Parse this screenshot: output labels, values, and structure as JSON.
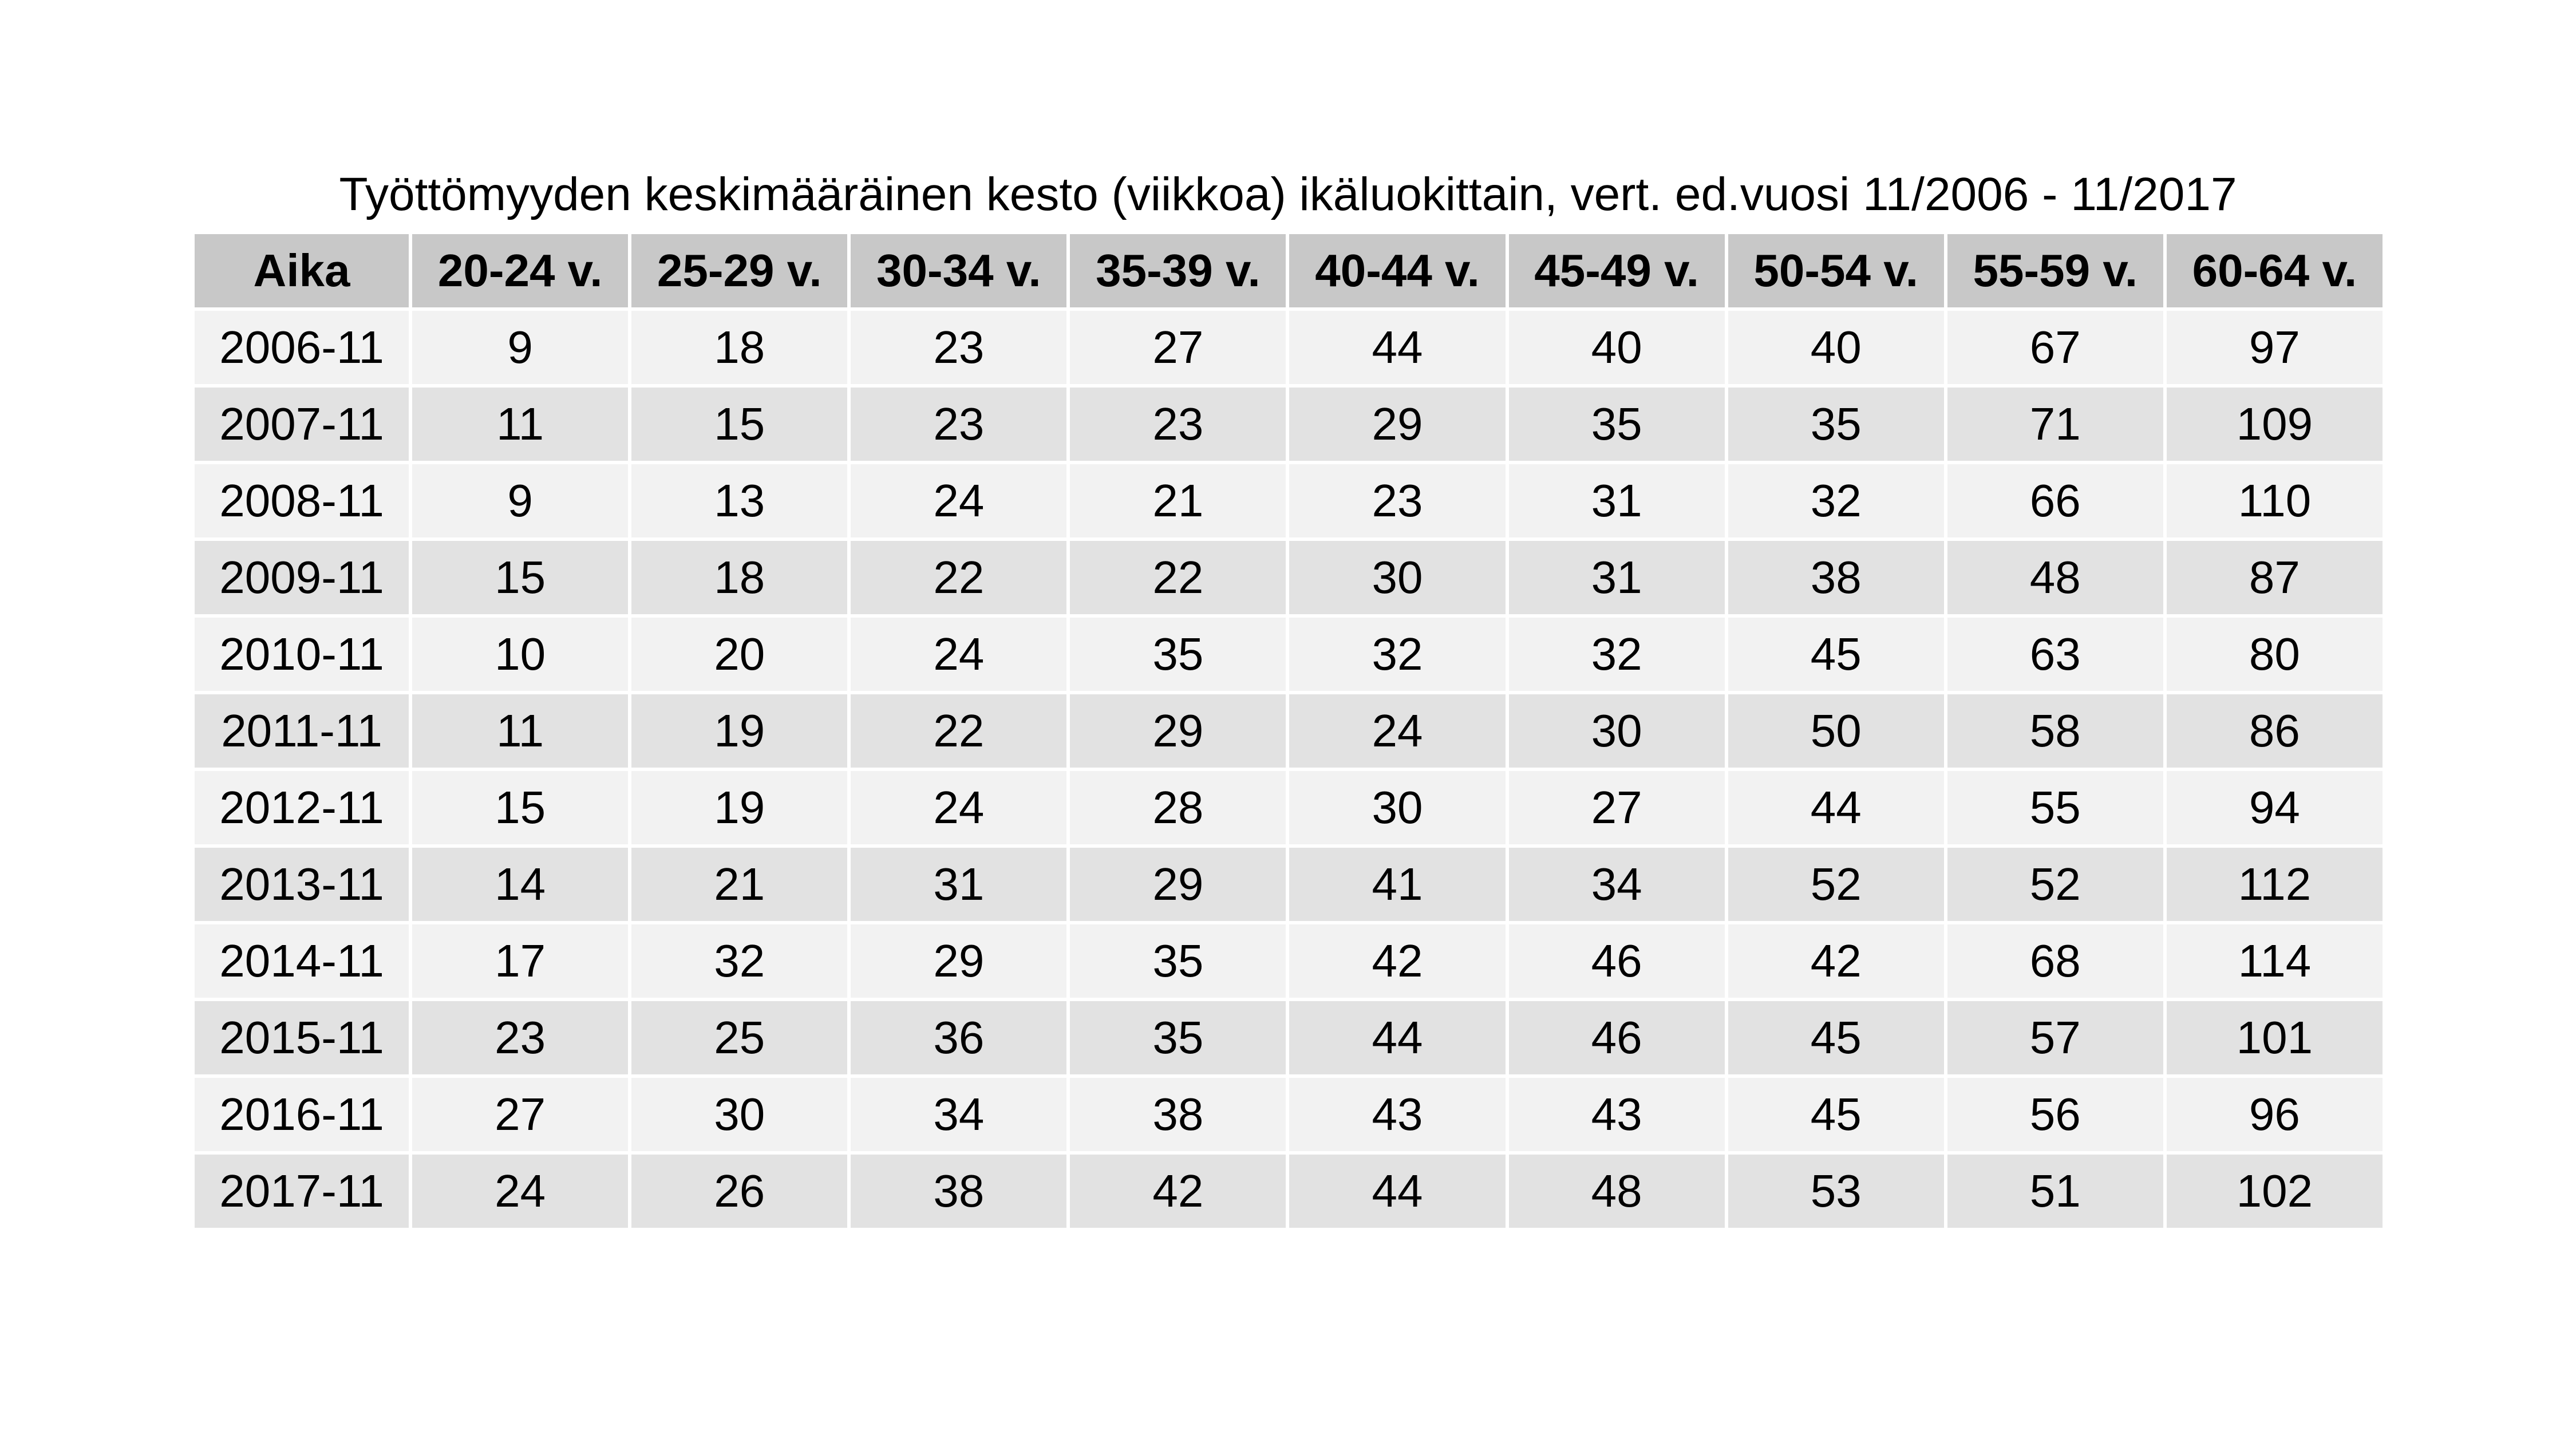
{
  "title": "Työttömyyden keskimääräinen kesto (viikkoa) ikäluokittain, vert. ed.vuosi 11/2006 - 11/2017",
  "colors": {
    "header_bg": "#c8c8c8",
    "row_light": "#f2f2f2",
    "row_dark": "#e2e2e2",
    "grid_lines": "#ffffff"
  },
  "table": {
    "headers": [
      "Aika",
      "20-24 v.",
      "25-29 v.",
      "30-34 v.",
      "35-39 v.",
      "40-44 v.",
      "45-49 v.",
      "50-54 v.",
      "55-59 v.",
      "60-64 v."
    ],
    "rows": [
      [
        "2006-11",
        "9",
        "18",
        "23",
        "27",
        "44",
        "40",
        "40",
        "67",
        "97"
      ],
      [
        "2007-11",
        "11",
        "15",
        "23",
        "23",
        "29",
        "35",
        "35",
        "71",
        "109"
      ],
      [
        "2008-11",
        "9",
        "13",
        "24",
        "21",
        "23",
        "31",
        "32",
        "66",
        "110"
      ],
      [
        "2009-11",
        "15",
        "18",
        "22",
        "22",
        "30",
        "31",
        "38",
        "48",
        "87"
      ],
      [
        "2010-11",
        "10",
        "20",
        "24",
        "35",
        "32",
        "32",
        "45",
        "63",
        "80"
      ],
      [
        "2011-11",
        "11",
        "19",
        "22",
        "29",
        "24",
        "30",
        "50",
        "58",
        "86"
      ],
      [
        "2012-11",
        "15",
        "19",
        "24",
        "28",
        "30",
        "27",
        "44",
        "55",
        "94"
      ],
      [
        "2013-11",
        "14",
        "21",
        "31",
        "29",
        "41",
        "34",
        "52",
        "52",
        "112"
      ],
      [
        "2014-11",
        "17",
        "32",
        "29",
        "35",
        "42",
        "46",
        "42",
        "68",
        "114"
      ],
      [
        "2015-11",
        "23",
        "25",
        "36",
        "35",
        "44",
        "46",
        "45",
        "57",
        "101"
      ],
      [
        "2016-11",
        "27",
        "30",
        "34",
        "38",
        "43",
        "43",
        "45",
        "56",
        "96"
      ],
      [
        "2017-11",
        "24",
        "26",
        "38",
        "42",
        "44",
        "48",
        "53",
        "51",
        "102"
      ]
    ]
  }
}
